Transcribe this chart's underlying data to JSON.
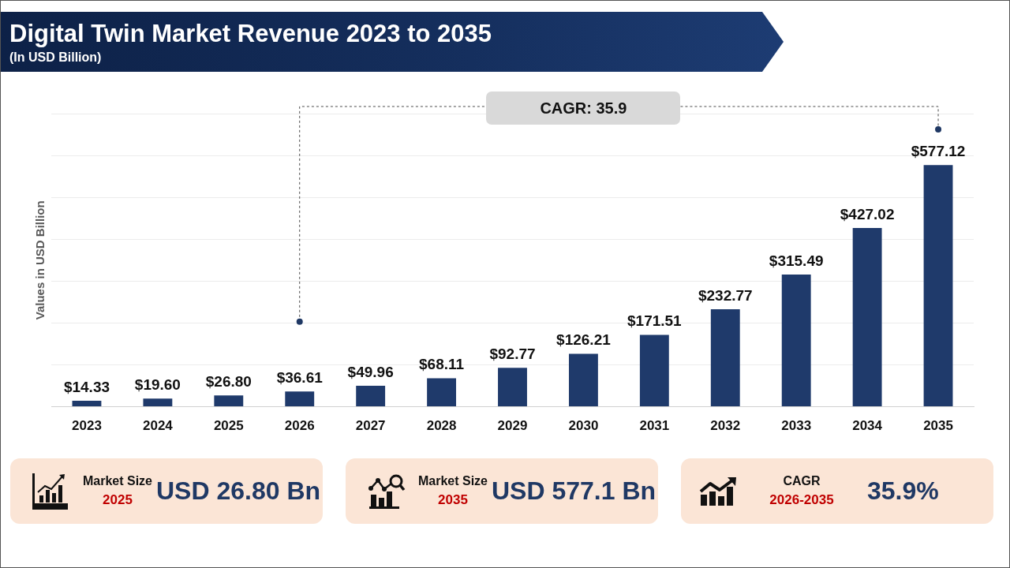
{
  "chart_data": [
    {
      "type": "bar",
      "title": "Digital Twin Market Revenue 2023 to 2035",
      "subtitle": "(In USD Billion)",
      "ylabel": "Values in USD Billion",
      "categories": [
        "2023",
        "2024",
        "2025",
        "2026",
        "2027",
        "2028",
        "2029",
        "2030",
        "2031",
        "2032",
        "2033",
        "2034",
        "2035"
      ],
      "values": [
        14.33,
        19.6,
        26.8,
        36.61,
        49.96,
        68.11,
        92.77,
        126.21,
        171.51,
        232.77,
        315.49,
        427.02,
        577.12
      ],
      "value_labels": [
        "$14.33",
        "$19.60",
        "$26.80",
        "$36.61",
        "$49.96",
        "$68.11",
        "$92.77",
        "$126.21",
        "$171.51",
        "$232.77",
        "$315.49",
        "$427.02",
        "$577.12"
      ],
      "color": "#1f3a6b",
      "ylim": [
        0,
        700
      ],
      "yticks": [
        {
          "value": 0,
          "label": null
        },
        {
          "value": 100,
          "label": null
        },
        {
          "value": 200,
          "label": null
        },
        {
          "value": 300,
          "label": null
        },
        {
          "value": 400,
          "label": null
        },
        {
          "value": 500,
          "label": null
        },
        {
          "value": 600,
          "label": null
        },
        {
          "value": 700,
          "label": null
        }
      ],
      "grid": "y",
      "tick_labels": "x",
      "annotations": [
        "CAGR: 35.9"
      ]
    },
    {
      "type": "other",
      "title": "Market Size",
      "subtitle": "2025",
      "annotations": [
        "USD 26.80 Bn"
      ]
    },
    {
      "type": "other",
      "title": "Market Size",
      "subtitle": "2035",
      "annotations": [
        "USD 577.1 Bn"
      ]
    },
    {
      "type": "other",
      "title": "CAGR",
      "subtitle": "2026-2035",
      "annotations": [
        "35.9%"
      ]
    }
  ]
}
